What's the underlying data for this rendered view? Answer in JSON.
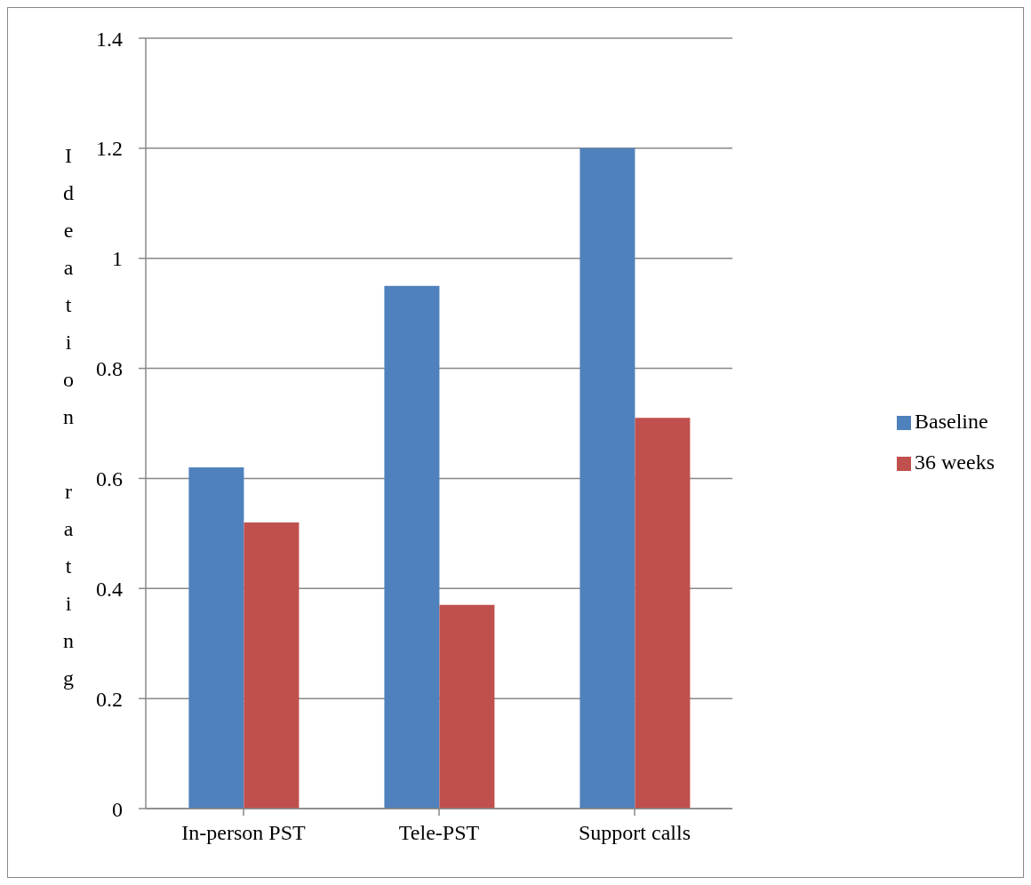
{
  "chart_data": {
    "type": "bar",
    "ylabel": "Ideation rating",
    "categories": [
      "In-person PST",
      "Tele-PST",
      "Support calls"
    ],
    "series": [
      {
        "name": "Baseline",
        "color": "#4f81bd",
        "values": [
          0.62,
          0.95,
          1.2
        ]
      },
      {
        "name": "36 weeks",
        "color": "#c0504d",
        "values": [
          0.52,
          0.37,
          0.71
        ]
      }
    ],
    "ylim": [
      0,
      1.4
    ],
    "yticks": [
      0,
      0.2,
      0.4,
      0.6,
      0.8,
      1,
      1.2,
      1.4
    ],
    "grid": "y",
    "legend": "right"
  }
}
